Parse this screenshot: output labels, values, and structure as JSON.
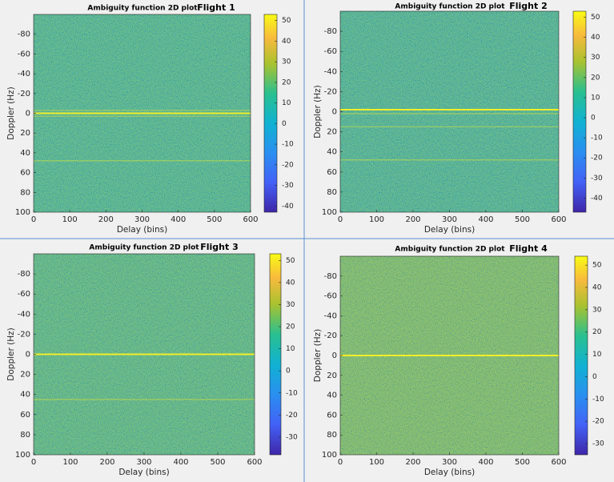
{
  "chart_data": [
    {
      "type": "heatmap",
      "title": "Ambiguity function 2D plot",
      "annotation": "Flight 1",
      "xlabel": "Delay (bins)",
      "ylabel": "Doppler (Hz)",
      "xlim": [
        0,
        600
      ],
      "xticks": [
        0,
        100,
        200,
        300,
        400,
        500,
        600
      ],
      "ylim": [
        -100,
        100
      ],
      "yticks": [
        -80,
        -60,
        -40,
        -20,
        0,
        20,
        40,
        60,
        80,
        100
      ],
      "clim": [
        -43,
        53
      ],
      "cticks": [
        50,
        40,
        30,
        20,
        10,
        0,
        -10,
        -20,
        -30,
        -40
      ],
      "color": "#35b794",
      "line_color": "#f2ee28",
      "bright_rows": [
        0,
        -3,
        3,
        48
      ]
    },
    {
      "type": "heatmap",
      "title": "Ambiguity function 2D plot",
      "annotation": "Flight 2",
      "xlabel": "Delay (bins)",
      "ylabel": "Doppler (Hz)",
      "xlim": [
        0,
        600
      ],
      "xticks": [
        0,
        100,
        200,
        300,
        400,
        500,
        600
      ],
      "ylim": [
        -100,
        100
      ],
      "yticks": [
        -80,
        -60,
        -40,
        -20,
        0,
        20,
        40,
        60,
        80,
        100
      ],
      "clim": [
        -47,
        53
      ],
      "cticks": [
        50,
        40,
        30,
        20,
        10,
        0,
        -10,
        -20,
        -30,
        -40
      ],
      "color": "#33b498",
      "line_color": "#f2ee28",
      "bright_rows": [
        -2,
        2,
        48,
        15
      ]
    },
    {
      "type": "heatmap",
      "title": "Ambiguity function 2D plot",
      "annotation": "Flight 3",
      "xlabel": "Delay (bins)",
      "ylabel": "Doppler (Hz)",
      "xlim": [
        0,
        600
      ],
      "xticks": [
        0,
        100,
        200,
        300,
        400,
        500,
        600
      ],
      "ylim": [
        -100,
        100
      ],
      "yticks": [
        -80,
        -60,
        -40,
        -20,
        0,
        20,
        40,
        60,
        80,
        100
      ],
      "clim": [
        -38,
        53
      ],
      "cticks": [
        50,
        40,
        30,
        20,
        10,
        0,
        -10,
        -20,
        -30
      ],
      "color": "#45b985",
      "line_color": "#f2ee28",
      "bright_rows": [
        0,
        45
      ]
    },
    {
      "type": "heatmap",
      "title": "Ambiguity function 2D plot",
      "annotation": "Flight 4",
      "xlabel": "Delay (bins)",
      "ylabel": "Doppler (Hz)",
      "xlim": [
        0,
        600
      ],
      "xticks": [
        0,
        100,
        200,
        300,
        400,
        500,
        600
      ],
      "ylim": [
        -100,
        100
      ],
      "yticks": [
        -80,
        -60,
        -40,
        -20,
        0,
        20,
        40,
        60,
        80,
        100
      ],
      "clim": [
        -35,
        54
      ],
      "cticks": [
        50,
        40,
        30,
        20,
        10,
        0,
        -10,
        -20,
        -30
      ],
      "color": "#70bf63",
      "line_color": "#f2ee28",
      "bright_rows": [
        0
      ]
    }
  ]
}
